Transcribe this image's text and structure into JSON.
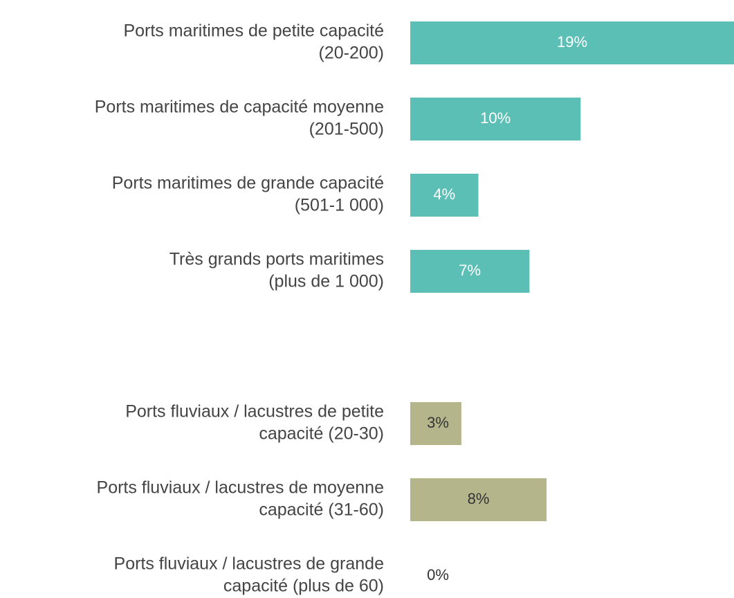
{
  "chart_data": {
    "type": "barh",
    "categories": [
      [
        "Ports maritimes de petite capacité",
        "(20-200)"
      ],
      [
        "Ports maritimes de capacité moyenne",
        "(201-500)"
      ],
      [
        "Ports maritimes de grande capacité",
        "(501-1 000)"
      ],
      [
        "Très grands ports maritimes",
        "(plus de 1 000)"
      ],
      null,
      [
        "Ports fluviaux / lacustres de petite",
        "capacité (20-30)"
      ],
      [
        "Ports fluviaux / lacustres  de moyenne",
        "capacité (31-60)"
      ],
      [
        "Ports fluviaux / lacustres  de grande",
        "capacité (plus de 60)"
      ]
    ],
    "values": [
      19,
      10,
      4,
      7,
      null,
      3,
      8,
      0
    ],
    "value_labels": [
      "19%",
      "10%",
      "4%",
      "7%",
      null,
      "3%",
      "8%",
      "0%"
    ],
    "colors": [
      "#5bbfb5",
      "#5bbfb5",
      "#5bbfb5",
      "#5bbfb5",
      null,
      "#b5b58c",
      "#b5b58c",
      "#b5b58c"
    ],
    "label_colors": [
      "#ffffff",
      "#ffffff",
      "#ffffff",
      "#ffffff",
      null,
      "#333333",
      "#333333",
      "#333333"
    ],
    "xlim": [
      0,
      19
    ]
  }
}
